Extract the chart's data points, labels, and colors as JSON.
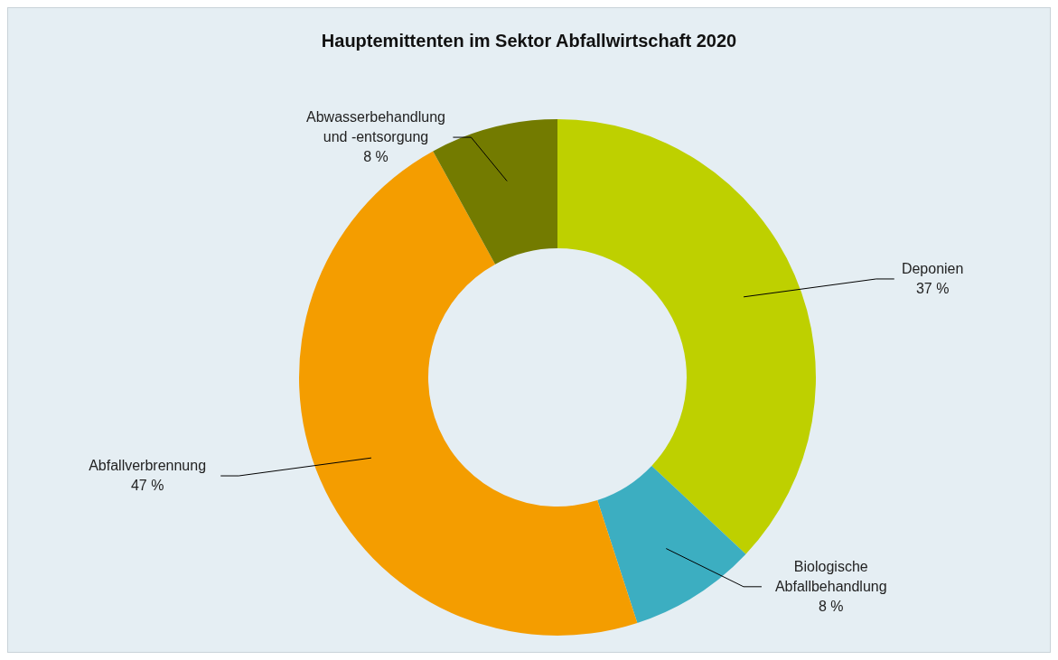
{
  "chart_data": {
    "type": "donut",
    "title": "Hauptemittenten im Sektor Abfallwirtschaft 2020",
    "categories": [
      "Deponien",
      "Biologische Abfallbehandlung",
      "Abfallverbrennung",
      "Abwasserbehandlung und -entsorgung"
    ],
    "values": [
      37,
      8,
      47,
      8
    ],
    "colors": [
      "#bed000",
      "#3caec1",
      "#f49d00",
      "#737b00"
    ],
    "value_labels": [
      "37 %",
      "8 %",
      "47 %",
      "8 %"
    ]
  }
}
